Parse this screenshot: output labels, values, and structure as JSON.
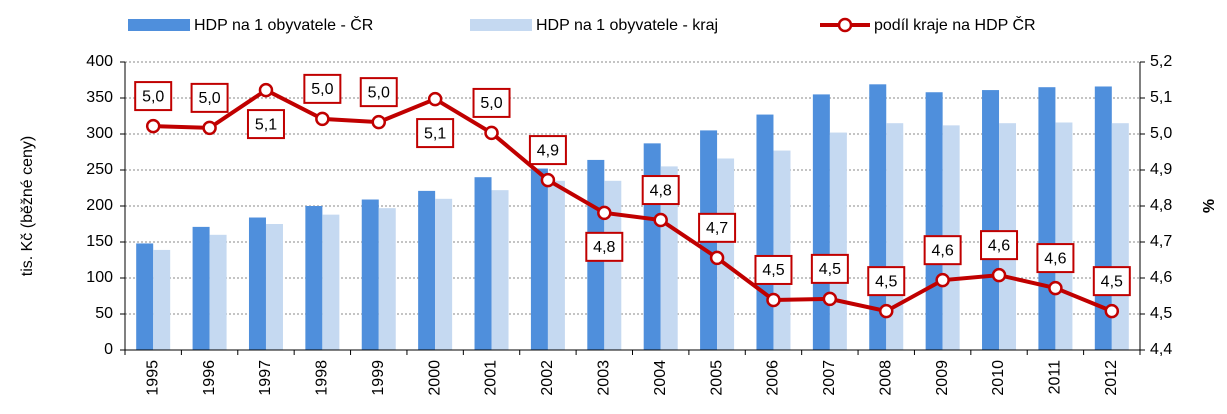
{
  "chart_data": {
    "type": "bar_line",
    "categories": [
      "1995",
      "1996",
      "1997",
      "1998",
      "1999",
      "2000",
      "2001",
      "2002",
      "2003",
      "2004",
      "2005",
      "2006",
      "2007",
      "2008",
      "2009",
      "2010",
      "2011",
      "2012"
    ],
    "series": [
      {
        "name": "HDP na 1 obyvatele - ČR",
        "color": "#4f8fdc",
        "type": "bar",
        "values": [
          148,
          171,
          184,
          200,
          209,
          221,
          240,
          252,
          264,
          287,
          305,
          327,
          355,
          369,
          358,
          361,
          365,
          366
        ]
      },
      {
        "name": "HDP na 1 obyvatele - kraj",
        "color": "#c5d9f1",
        "type": "bar",
        "values": [
          139,
          160,
          175,
          188,
          197,
          210,
          222,
          235,
          235,
          255,
          266,
          277,
          302,
          315,
          312,
          315,
          316,
          315
        ]
      },
      {
        "name": "podíl kraje na HDP ČR",
        "color": "#c00000",
        "type": "line",
        "axis": "y2",
        "values": [
          5.022,
          5.017,
          5.122,
          5.042,
          5.033,
          5.097,
          5.003,
          4.872,
          4.781,
          4.761,
          4.656,
          4.539,
          4.542,
          4.508,
          4.594,
          4.608,
          4.572,
          4.508
        ],
        "value_labels": [
          "5,0",
          "5,0",
          "5,1",
          "5,0",
          "5,0",
          "5,1",
          "5,0",
          "4,9",
          "4,8",
          "4,8",
          "4,7",
          "4,5",
          "4,5",
          "4,5",
          "4,6",
          "4,6",
          "4,6",
          "4,5"
        ]
      }
    ],
    "ylabel": "tis. Kč (běžné ceny)",
    "y2label": "%",
    "ylim": [
      0,
      400
    ],
    "yticks": [
      0,
      50,
      100,
      150,
      200,
      250,
      300,
      350,
      400
    ],
    "y2lim": [
      4.4,
      5.2
    ],
    "y2ticks": [
      {
        "value": 4.4,
        "label": "4,4"
      },
      {
        "value": 4.5,
        "label": "4,5"
      },
      {
        "value": 4.6,
        "label": "4,6"
      },
      {
        "value": 4.7,
        "label": "4,7"
      },
      {
        "value": 4.8,
        "label": "4,8"
      },
      {
        "value": 4.9,
        "label": "4,9"
      },
      {
        "value": 5.0,
        "label": "5,0"
      },
      {
        "value": 5.1,
        "label": "5,1"
      },
      {
        "value": 5.2,
        "label": "5,2"
      }
    ],
    "grid": true,
    "legend": "top"
  }
}
